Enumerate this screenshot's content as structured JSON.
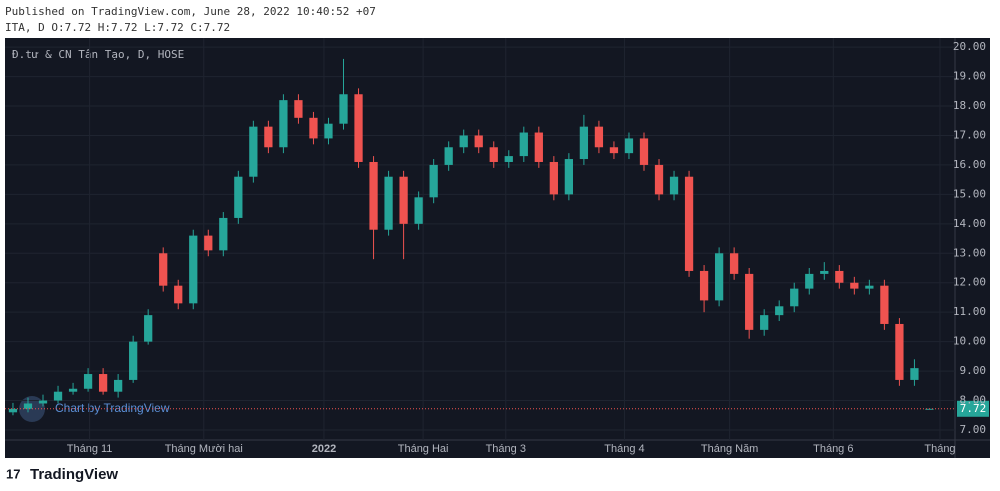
{
  "header": {
    "published": "Published on TradingView.com, June 28, 2022 10:40:52 +07",
    "ohlc": "ITA, D O:7.72 H:7.72 L:7.72 C:7.72"
  },
  "chart_data": {
    "type": "candlestick",
    "title": "Đ.tư & CN Tân Tạo, D, HOSE",
    "watermark": "Chart by TradingView",
    "up_color": "#26a69a",
    "down_color": "#ef5350",
    "grid": true,
    "open": [
      7.6,
      7.72,
      7.9,
      8.0,
      8.3,
      8.4,
      8.9,
      8.3,
      8.7,
      10.0,
      13.0,
      11.9,
      11.3,
      13.6,
      13.1,
      14.2,
      15.6,
      17.3,
      16.6,
      18.2,
      17.6,
      16.9,
      17.4,
      18.4,
      16.1,
      13.8,
      15.6,
      14.0,
      14.9,
      16.0,
      16.6,
      17.0,
      16.6,
      16.1,
      16.3,
      17.1,
      16.1,
      15.0,
      16.2,
      17.3,
      16.6,
      16.4,
      16.9,
      16.0,
      15.0,
      15.6,
      12.4,
      11.4,
      13.0,
      12.3,
      10.4,
      10.9,
      11.2,
      11.8,
      12.3,
      12.4,
      12.0,
      11.8,
      11.9,
      10.6,
      8.7,
      7.72
    ],
    "high": [
      7.92,
      8.1,
      8.2,
      8.5,
      8.6,
      9.1,
      9.1,
      8.9,
      10.2,
      11.1,
      13.2,
      12.1,
      13.8,
      13.8,
      14.4,
      15.8,
      17.5,
      17.5,
      18.4,
      18.4,
      17.8,
      17.6,
      19.6,
      18.6,
      16.3,
      15.8,
      15.8,
      15.1,
      16.2,
      16.8,
      17.2,
      17.2,
      16.8,
      16.5,
      17.3,
      17.3,
      16.3,
      16.4,
      17.7,
      17.5,
      16.8,
      17.1,
      17.1,
      16.2,
      15.8,
      15.8,
      12.6,
      13.2,
      13.2,
      12.5,
      11.1,
      11.4,
      12.0,
      12.5,
      12.7,
      12.6,
      12.2,
      12.1,
      12.1,
      10.8,
      9.4,
      7.72
    ],
    "low": [
      7.5,
      7.6,
      7.8,
      7.9,
      8.2,
      8.3,
      8.2,
      8.1,
      8.6,
      9.9,
      11.7,
      11.1,
      11.1,
      12.9,
      12.9,
      14.0,
      15.4,
      16.4,
      16.4,
      17.4,
      16.7,
      16.7,
      17.2,
      15.9,
      12.8,
      13.6,
      12.8,
      13.8,
      14.7,
      15.8,
      16.4,
      16.4,
      15.9,
      15.9,
      16.1,
      15.9,
      14.8,
      14.8,
      16.0,
      16.4,
      16.2,
      16.2,
      15.8,
      14.8,
      14.8,
      12.2,
      11.0,
      11.2,
      12.1,
      10.1,
      10.2,
      10.7,
      11.0,
      11.6,
      12.1,
      11.8,
      11.6,
      11.6,
      10.4,
      8.5,
      8.5,
      7.72
    ],
    "close": [
      7.72,
      7.9,
      8.0,
      8.3,
      8.4,
      8.9,
      8.3,
      8.7,
      10.0,
      10.9,
      11.9,
      11.3,
      13.6,
      13.1,
      14.2,
      15.6,
      17.3,
      16.6,
      18.2,
      17.6,
      16.9,
      17.4,
      18.4,
      16.1,
      13.8,
      15.6,
      14.0,
      14.9,
      16.0,
      16.6,
      17.0,
      16.6,
      16.1,
      16.3,
      17.1,
      16.1,
      15.0,
      16.2,
      17.3,
      16.6,
      16.4,
      16.9,
      16.0,
      15.0,
      15.6,
      12.4,
      11.4,
      13.0,
      12.3,
      10.4,
      10.9,
      11.2,
      11.8,
      12.3,
      12.4,
      12.0,
      11.8,
      11.9,
      10.6,
      8.7,
      9.1,
      7.72
    ],
    "last_price": 7.72,
    "xlim": [
      -0.53,
      62.7
    ],
    "xticks": [
      {
        "value": 5.1,
        "label": "Tháng 11"
      },
      {
        "value": 12.7,
        "label": "Tháng Mười hai"
      },
      {
        "value": 20.7,
        "label": "2022"
      },
      {
        "value": 27.3,
        "label": "Tháng Hai"
      },
      {
        "value": 32.8,
        "label": "Tháng 3"
      },
      {
        "value": 40.7,
        "label": "Tháng 4"
      },
      {
        "value": 47.7,
        "label": "Tháng Năm"
      },
      {
        "value": 54.6,
        "label": "Tháng 6"
      },
      {
        "value": 61.7,
        "label": "Tháng"
      }
    ],
    "ylim": [
      6.66,
      20.31
    ],
    "yticks": [
      {
        "value": 7,
        "label": "7.00"
      },
      {
        "value": 8,
        "label": "8.00"
      },
      {
        "value": 9,
        "label": "9.00"
      },
      {
        "value": 10,
        "label": "10.00"
      },
      {
        "value": 11,
        "label": "11.00"
      },
      {
        "value": 12,
        "label": "12.00"
      },
      {
        "value": 13,
        "label": "13.00"
      },
      {
        "value": 14,
        "label": "14.00"
      },
      {
        "value": 15,
        "label": "15.00"
      },
      {
        "value": 16,
        "label": "16.00"
      },
      {
        "value": 17,
        "label": "17.00"
      },
      {
        "value": 18,
        "label": "18.00"
      },
      {
        "value": 19,
        "label": "19.00"
      },
      {
        "value": 20,
        "label": "20.00"
      }
    ]
  },
  "footer": {
    "brand": "TradingView"
  }
}
